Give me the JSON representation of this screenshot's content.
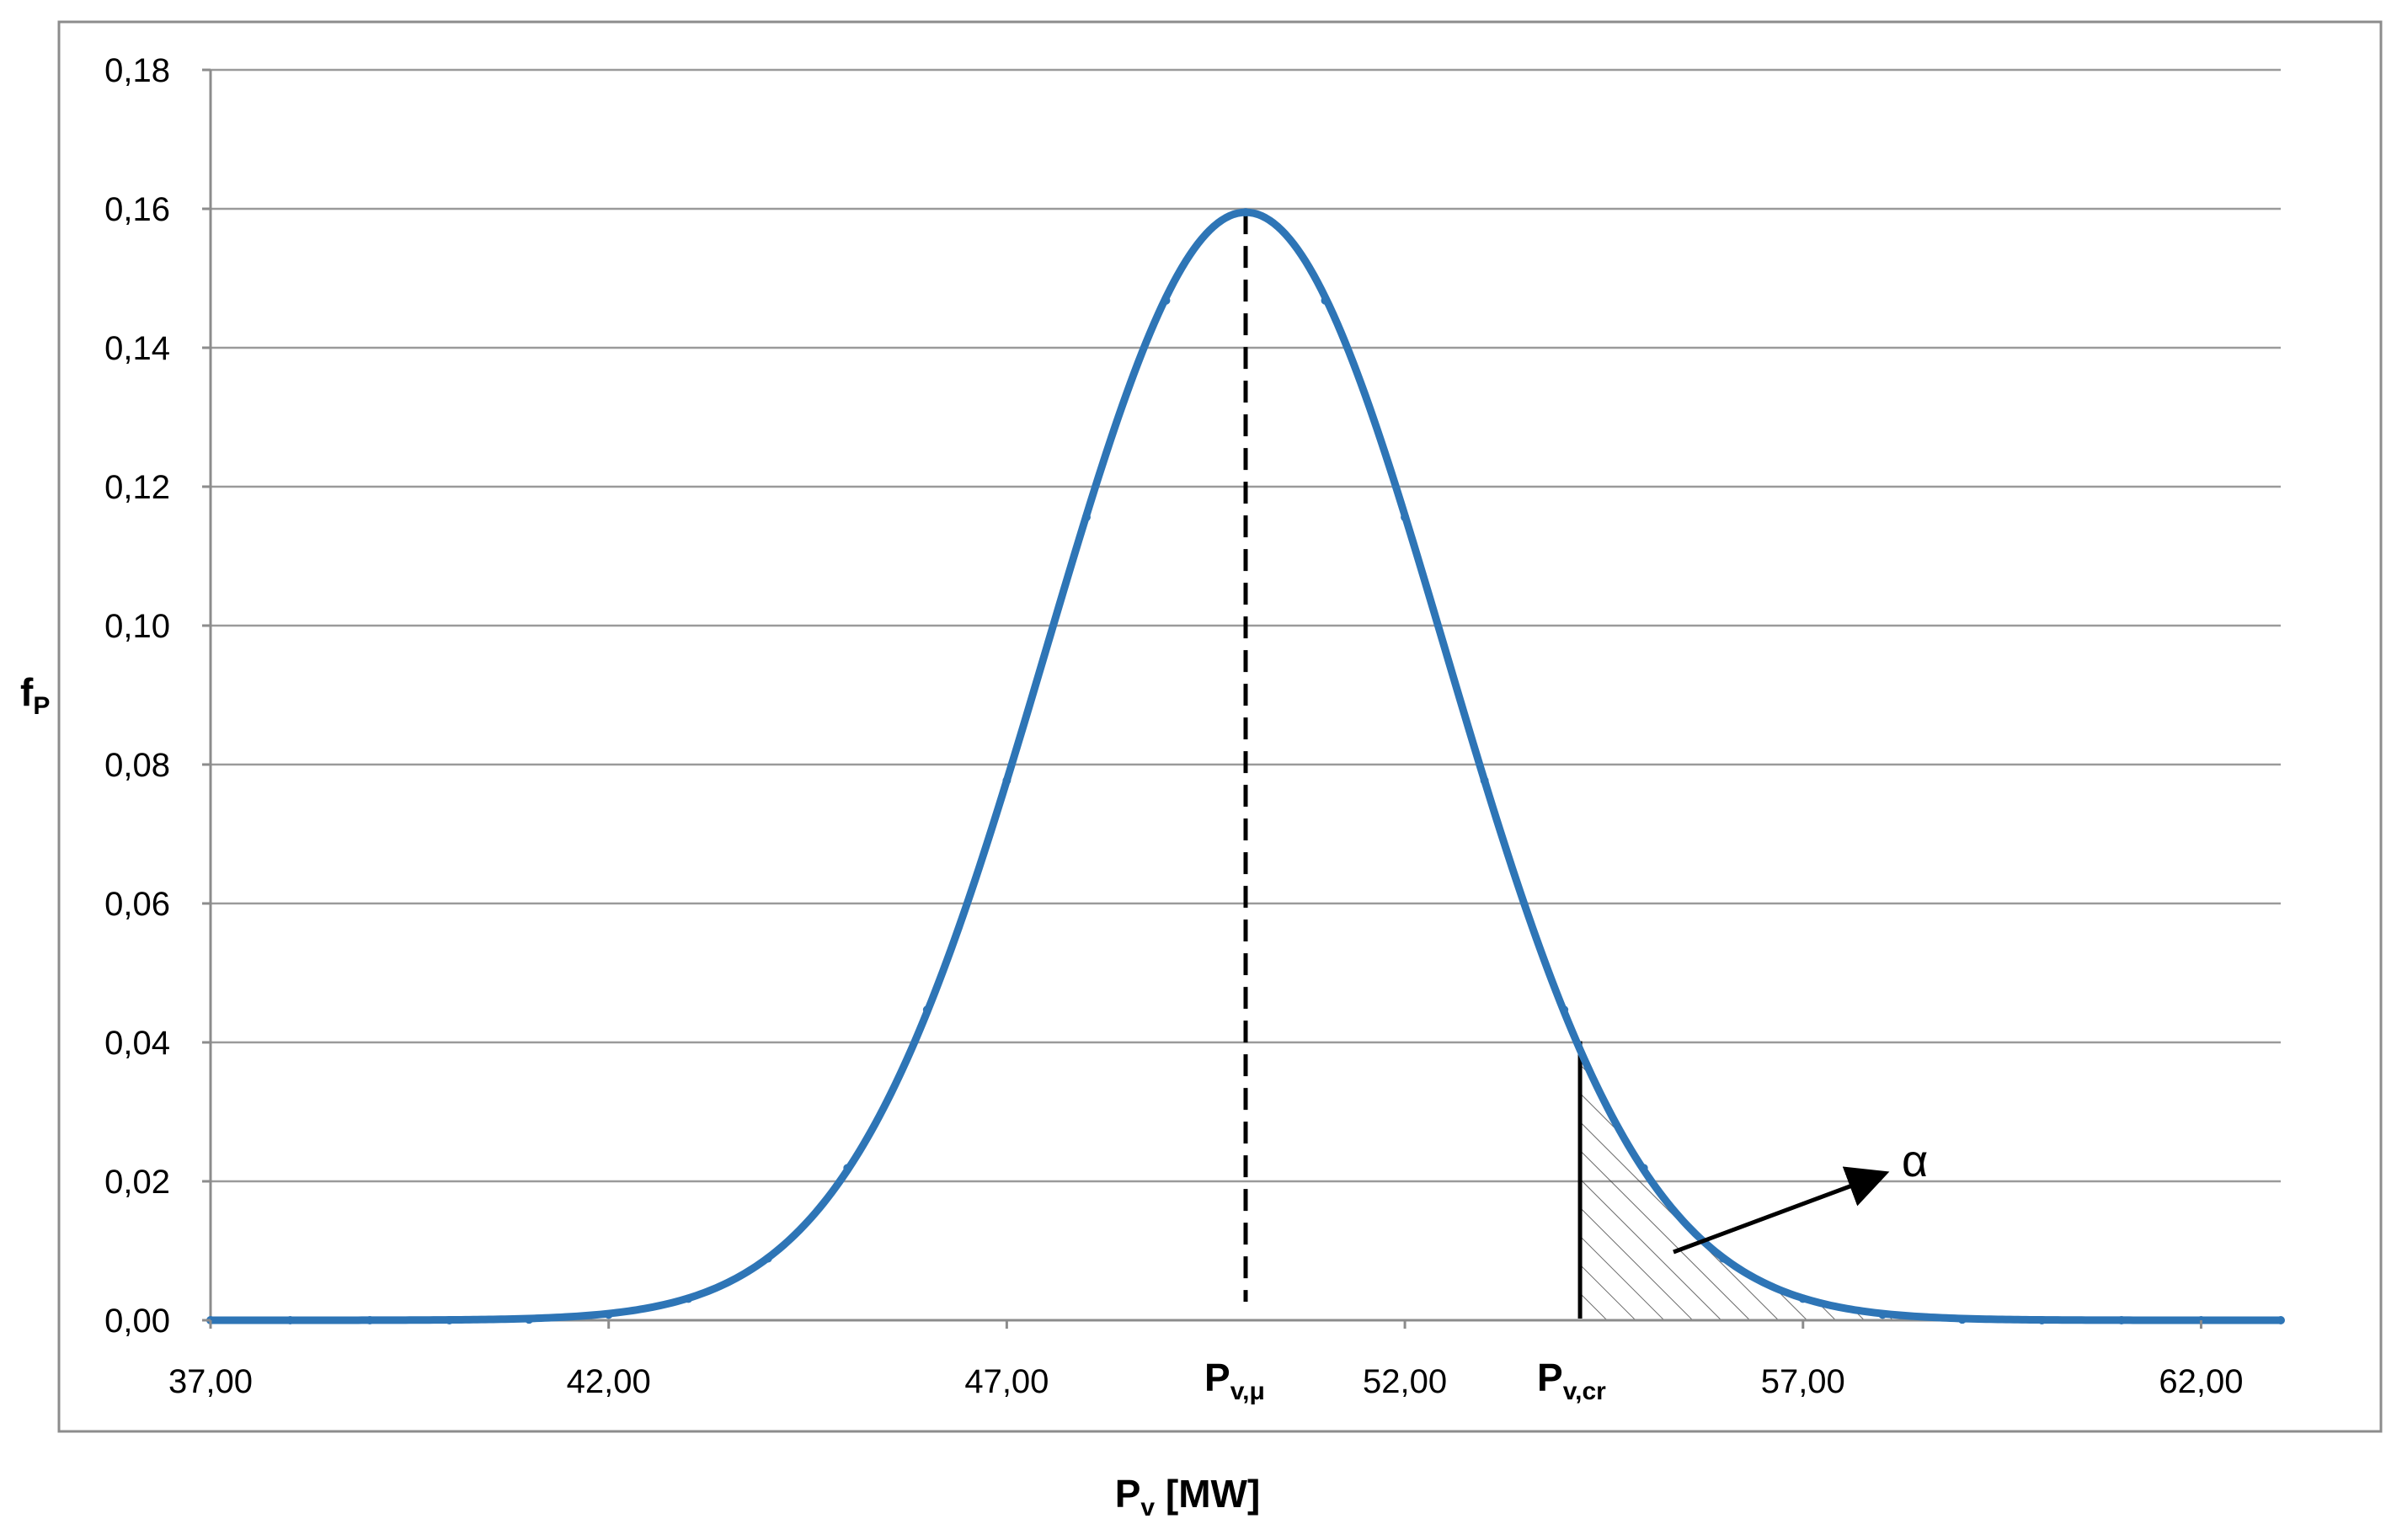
{
  "chart_data": {
    "type": "line",
    "title": "",
    "xlabel": {
      "main": "P",
      "sub": "v",
      "rest": " [MW]"
    },
    "ylabel": {
      "main": "f",
      "sub": "P"
    },
    "xlim": [
      37,
      63
    ],
    "ylim": [
      0,
      0.18
    ],
    "x_ticks": [
      37,
      42,
      47,
      52,
      57,
      62
    ],
    "x_tick_labels": [
      "37,00",
      "42,00",
      "47,00",
      "52,00",
      "57,00",
      "62,00"
    ],
    "y_ticks": [
      0,
      0.02,
      0.04,
      0.06,
      0.08,
      0.1,
      0.12,
      0.14,
      0.16,
      0.18
    ],
    "y_tick_labels": [
      "0,00",
      "0,02",
      "0,04",
      "0,06",
      "0,08",
      "0,10",
      "0,12",
      "0,14",
      "0,16",
      "0,18"
    ],
    "grid": {
      "horizontal": true,
      "vertical": false
    },
    "series": [
      {
        "color": "#2e75b6",
        "x": [
          37,
          38,
          39,
          40,
          41,
          42,
          43,
          44,
          45,
          46,
          47,
          48,
          49,
          50,
          51,
          52,
          53,
          54,
          55,
          56,
          57,
          58,
          59,
          60,
          61,
          62,
          63
        ],
        "y": [
          0.0,
          0.0,
          0.0,
          0.0,
          0.0001,
          0.0008,
          0.0031,
          0.0089,
          0.0219,
          0.0447,
          0.0777,
          0.1156,
          0.1468,
          0.1595,
          0.1468,
          0.1156,
          0.0777,
          0.0447,
          0.0219,
          0.0089,
          0.0031,
          0.0008,
          0.0001,
          0.0,
          0.0,
          0.0,
          0.0
        ]
      }
    ],
    "annotations": {
      "mean_line": {
        "x": 50,
        "style": "dashed"
      },
      "critical_line": {
        "x": 54.2,
        "style": "solid"
      },
      "shaded_tail_from_x": 54.2,
      "mean_label": {
        "main": "P",
        "sub": "v,μ"
      },
      "critical_label": {
        "main": "P",
        "sub": "v,cr"
      },
      "alpha_label": "α"
    }
  }
}
